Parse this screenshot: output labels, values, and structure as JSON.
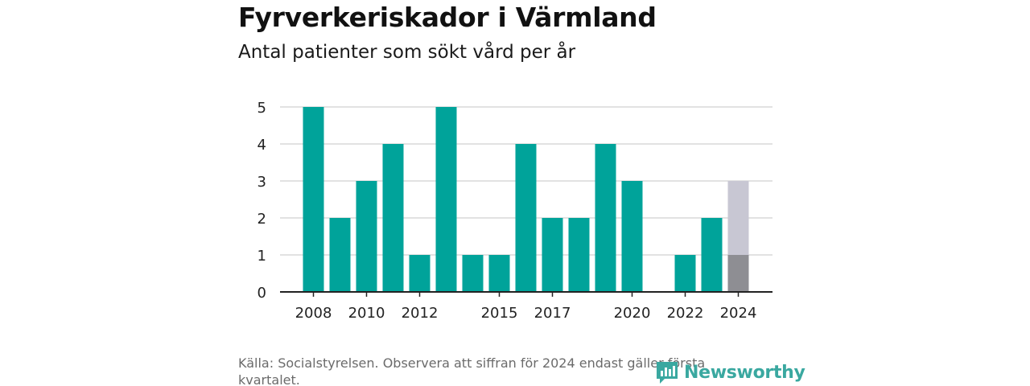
{
  "header": {
    "title": "Fyrverkeriskador i Värmland",
    "subtitle": "Antal patienter som sökt vård per år"
  },
  "footer": {
    "source": "Källa: Socialstyrelsen. Observera att siffran för 2024 endast gäller första kvartalet.",
    "logo_text": "Newsworthy"
  },
  "colors": {
    "bar": "#00a39a",
    "bar_projection": "#c8c7d3",
    "bar_partial": "#8e8e93",
    "grid": "#d9d9d9",
    "axis": "#222222",
    "logo": "#3aa8a0"
  },
  "chart_data": {
    "type": "bar",
    "title": "Fyrverkeriskador i Värmland",
    "subtitle": "Antal patienter som sökt vård per år",
    "xlabel": "",
    "ylabel": "",
    "ylim": [
      0,
      5
    ],
    "yticks": [
      0,
      1,
      2,
      3,
      4,
      5
    ],
    "grid": true,
    "categories": [
      "2008",
      "2009",
      "2010",
      "2011",
      "2012",
      "2013",
      "2014",
      "2015",
      "2016",
      "2017",
      "2018",
      "2019",
      "2020",
      "2021",
      "2022",
      "2023",
      "2024"
    ],
    "xtick_labels": [
      "2008",
      "2010",
      "2012",
      "2015",
      "2017",
      "2020",
      "2022",
      "2024"
    ],
    "series": [
      {
        "values": [
          5,
          2,
          3,
          4,
          1,
          5,
          1,
          1,
          4,
          2,
          2,
          4,
          3,
          0,
          1,
          2,
          1
        ]
      },
      {
        "values": [
          null,
          null,
          null,
          null,
          null,
          null,
          null,
          null,
          null,
          null,
          null,
          null,
          null,
          null,
          null,
          null,
          3
        ]
      }
    ]
  }
}
